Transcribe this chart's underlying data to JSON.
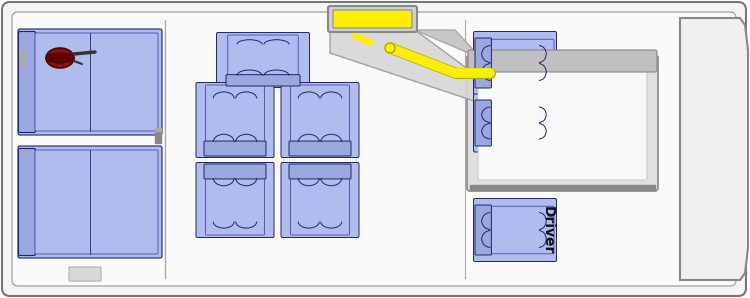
{
  "fig_width": 7.5,
  "fig_height": 2.98,
  "dpi": 100,
  "bg_color": "#ffffff",
  "van_fill": "#f5f5f5",
  "van_edge": "#888888",
  "seat_fill": "#b0bcee",
  "seat_fill2": "#9aa8e0",
  "seat_dark": "#6070c0",
  "seat_edge": "#222266",
  "seat_edge2": "#333399",
  "yellow_fill": "#ffee00",
  "yellow_edge": "#aaaa00",
  "red_fill": "#8b1010",
  "red_edge": "#550000",
  "driver_text": "Driver",
  "driver_fontsize": 10,
  "dash_fill": "#c0c0c0",
  "dash_edge": "#888888",
  "ramp_fill": "#d8d8d8",
  "ramp_edge": "#999999",
  "inner_wall": "#e8e8e8"
}
